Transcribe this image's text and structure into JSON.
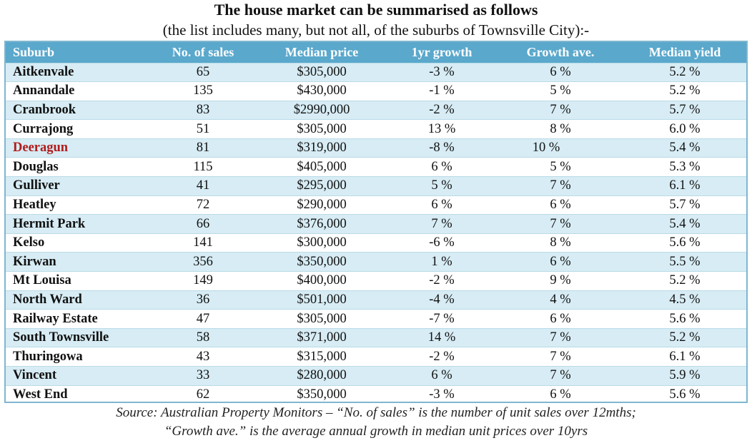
{
  "title": "The house market can be summarised as follows",
  "subtitle": "(the list includes many, but not all, of the suburbs of Townsville City):-",
  "highlight_color": "#b01c1c",
  "header_color": "#5aa8cc",
  "table": {
    "columns": [
      "Suburb",
      "No. of sales",
      "Median price",
      "1yr growth",
      "Growth ave.",
      "Median yield"
    ],
    "rows": [
      {
        "suburb": "Aitkenvale",
        "sales": "65",
        "price": "$305,000",
        "growth": "-3 %",
        "avg": "6 %",
        "yield": "5.2 %"
      },
      {
        "suburb": "Annandale",
        "sales": "135",
        "price": "$430,000",
        "growth": "-1 %",
        "avg": "5 %",
        "yield": "5.2 %"
      },
      {
        "suburb": "Cranbrook",
        "sales": "83",
        "price": "$2990,000",
        "growth": "-2 %",
        "avg": "7 %",
        "yield": "5.7 %"
      },
      {
        "suburb": "Currajong",
        "sales": "51",
        "price": "$305,000",
        "growth": "13 %",
        "avg": "8 %",
        "yield": "6.0 %"
      },
      {
        "suburb": "Deeragun",
        "sales": "81",
        "price": "$319,000",
        "growth": "-8 %",
        "avg": "10 %",
        "yield": "5.4 %",
        "highlight": true
      },
      {
        "suburb": "Douglas",
        "sales": "115",
        "price": "$405,000",
        "growth": "6 %",
        "avg": "5 %",
        "yield": "5.3 %"
      },
      {
        "suburb": "Gulliver",
        "sales": "41",
        "price": "$295,000",
        "growth": "5 %",
        "avg": "7 %",
        "yield": "6.1 %"
      },
      {
        "suburb": "Heatley",
        "sales": "72",
        "price": "$290,000",
        "growth": "6 %",
        "avg": "6 %",
        "yield": "5.7 %"
      },
      {
        "suburb": "Hermit Park",
        "sales": "66",
        "price": "$376,000",
        "growth": "7 %",
        "avg": "7 %",
        "yield": "5.4 %"
      },
      {
        "suburb": "Kelso",
        "sales": "141",
        "price": "$300,000",
        "growth": "-6 %",
        "avg": "8 %",
        "yield": "5.6 %"
      },
      {
        "suburb": "Kirwan",
        "sales": "356",
        "price": "$350,000",
        "growth": "1 %",
        "avg": "6 %",
        "yield": "5.5 %"
      },
      {
        "suburb": "Mt Louisa",
        "sales": "149",
        "price": "$400,000",
        "growth": "-2 %",
        "avg": "9 %",
        "yield": "5.2 %"
      },
      {
        "suburb": "North Ward",
        "sales": "36",
        "price": "$501,000",
        "growth": "-4 %",
        "avg": "4 %",
        "yield": "4.5 %"
      },
      {
        "suburb": "Railway Estate",
        "sales": "47",
        "price": "$305,000",
        "growth": "-7 %",
        "avg": "6 %",
        "yield": "5.6 %"
      },
      {
        "suburb": "South Townsville",
        "sales": "58",
        "price": "$371,000",
        "growth": "14 %",
        "avg": "7 %",
        "yield": "5.2 %"
      },
      {
        "suburb": "Thuringowa",
        "sales": "43",
        "price": "$315,000",
        "growth": "-2 %",
        "avg": "7 %",
        "yield": "6.1 %"
      },
      {
        "suburb": "Vincent",
        "sales": "33",
        "price": "$280,000",
        "growth": "6 %",
        "avg": "7 %",
        "yield": "5.9 %"
      },
      {
        "suburb": "West End",
        "sales": "62",
        "price": "$350,000",
        "growth": "-3 %",
        "avg": "6 %",
        "yield": "5.6 %"
      }
    ]
  },
  "source_line1": "Source: Australian Property Monitors – “No. of sales” is the number of unit sales over 12mths;",
  "source_line2": "“Growth ave.” is the average annual growth in median unit prices over 10yrs"
}
